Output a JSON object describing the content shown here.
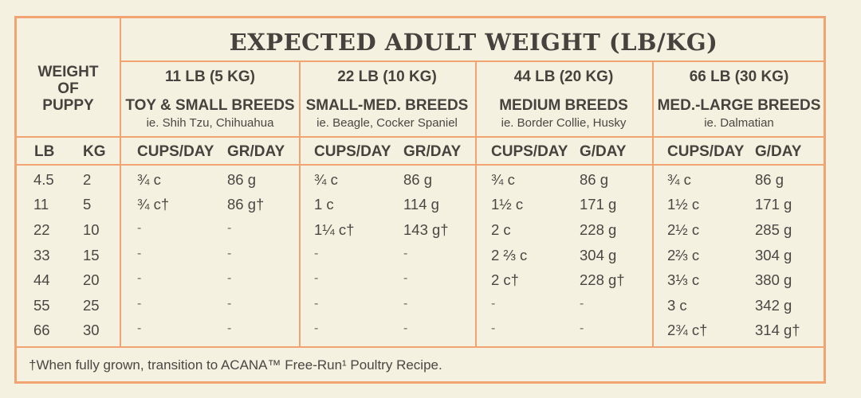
{
  "title": "EXPECTED ADULT WEIGHT (LB/KG)",
  "puppy_header": [
    "WEIGHT",
    "OF",
    "PUPPY"
  ],
  "unit_headers": {
    "lb": "LB",
    "kg": "KG"
  },
  "groups": [
    {
      "weight": "11 LB (5 KG)",
      "breed": "TOY & SMALL BREEDS",
      "example": "ie. Shih Tzu, Chihuahua",
      "cups_label": "CUPS/DAY",
      "grams_label": "GR/DAY",
      "cups": [
        "¾ c",
        "¾ c†",
        "-",
        "-",
        "-",
        "-",
        "-"
      ],
      "grams": [
        "86 g",
        "86 g†",
        "-",
        "-",
        "-",
        "-",
        "-"
      ]
    },
    {
      "weight": "22 LB (10 KG)",
      "breed": "SMALL-MED. BREEDS",
      "example": "ie. Beagle, Cocker Spaniel",
      "cups_label": "CUPS/DAY",
      "grams_label": "GR/DAY",
      "cups": [
        "¾ c",
        "1 c",
        "1¼ c†",
        "-",
        "-",
        "-",
        "-"
      ],
      "grams": [
        "86 g",
        "114 g",
        "143 g†",
        "-",
        "-",
        "-",
        "-"
      ]
    },
    {
      "weight": "44 LB (20 KG)",
      "breed": "MEDIUM BREEDS",
      "example": "ie. Border Collie, Husky",
      "cups_label": "CUPS/DAY",
      "grams_label": "G/DAY",
      "cups": [
        "¾ c",
        "1½ c",
        "2 c",
        "2 ⅔ c",
        "2 c†",
        "-",
        "-"
      ],
      "grams": [
        "86 g",
        "171 g",
        "228 g",
        "304 g",
        "228 g†",
        "-",
        "-"
      ]
    },
    {
      "weight": "66 LB (30 KG)",
      "breed": "MED.-LARGE BREEDS",
      "example": "ie. Dalmatian",
      "cups_label": "CUPS/DAY",
      "grams_label": "G/DAY",
      "cups": [
        "¾ c",
        "1½ c",
        "2½ c",
        "2⅔ c",
        "3⅓ c",
        "3 c",
        "2¾ c†"
      ],
      "grams": [
        "86 g",
        "171 g",
        "285 g",
        "304 g",
        "380 g",
        "342 g",
        "314 g†"
      ]
    }
  ],
  "puppy_weights": [
    {
      "lb": "4.5",
      "kg": "2"
    },
    {
      "lb": "11",
      "kg": "5"
    },
    {
      "lb": "22",
      "kg": "10"
    },
    {
      "lb": "33",
      "kg": "15"
    },
    {
      "lb": "44",
      "kg": "20"
    },
    {
      "lb": "55",
      "kg": "25"
    },
    {
      "lb": "66",
      "kg": "30"
    }
  ],
  "footnote": "†When fully grown, transition to ACANA™ Free-Run¹ Poultry Recipe.",
  "colors": {
    "background": "#f4f1e1",
    "border": "#f1a472",
    "text": "#46423d"
  }
}
